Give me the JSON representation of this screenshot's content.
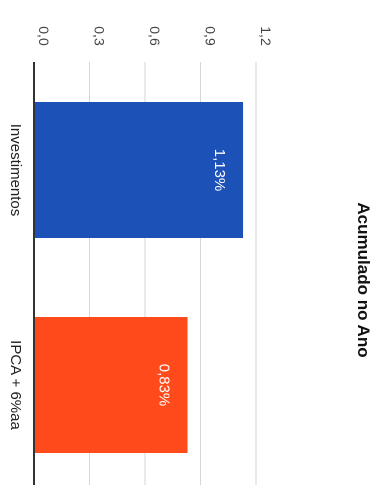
{
  "chart_data": {
    "type": "bar",
    "orientation": "vertical",
    "title": "Acumulado no Ano",
    "categories": [
      "Investimentos",
      "IPCA + 6%aa"
    ],
    "values": [
      1.13,
      0.83
    ],
    "data_labels": [
      "1,13%",
      "0,83%"
    ],
    "bar_colors": [
      "#1c51b8",
      "#ff4b1c"
    ],
    "y_ticks": [
      0.0,
      0.3,
      0.6,
      0.9,
      1.2
    ],
    "y_tick_labels": [
      "0,0",
      "0,3",
      "0,6",
      "0,9",
      "1,2"
    ],
    "ylim": [
      0,
      1.2
    ],
    "xlabel": "",
    "ylabel": "",
    "grid": true,
    "legend": "none",
    "rotation": "image displayed rotated 90 degrees clockwise"
  }
}
